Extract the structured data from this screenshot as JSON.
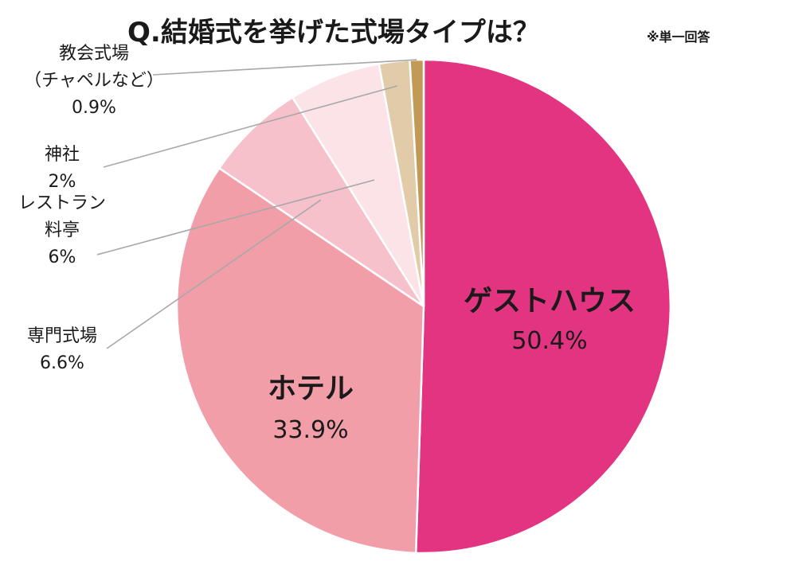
{
  "chart_data": {
    "type": "pie",
    "title": "Q.結婚式を挙げた式場タイプは？",
    "note": "※単一回答",
    "unit": "%",
    "slices": [
      {
        "label_lines": [
          "ゲストハウス"
        ],
        "value": 50.4,
        "value_text": "50.4%",
        "color": "#e33482",
        "label_placement": "inside"
      },
      {
        "label_lines": [
          "ホテル"
        ],
        "value": 33.9,
        "value_text": "33.9%",
        "color": "#f29ea9",
        "label_placement": "inside"
      },
      {
        "label_lines": [
          "専門式場"
        ],
        "value": 6.6,
        "value_text": "6.6%",
        "color": "#f6c1cb",
        "label_placement": "outside"
      },
      {
        "label_lines": [
          "レストラン",
          "料亭"
        ],
        "value": 6,
        "value_text": "6%",
        "color": "#fce3e8",
        "label_placement": "outside"
      },
      {
        "label_lines": [
          "神社"
        ],
        "value": 2,
        "value_text": "2%",
        "color": "#e2cba8",
        "label_placement": "outside"
      },
      {
        "label_lines": [
          "教会式場",
          "（チャペルなど）"
        ],
        "value": 0.9,
        "value_text": "0.9%",
        "color": "#c29a56",
        "label_placement": "outside"
      }
    ],
    "start_angle_deg": 0,
    "direction": "clockwise",
    "legend": "none"
  }
}
